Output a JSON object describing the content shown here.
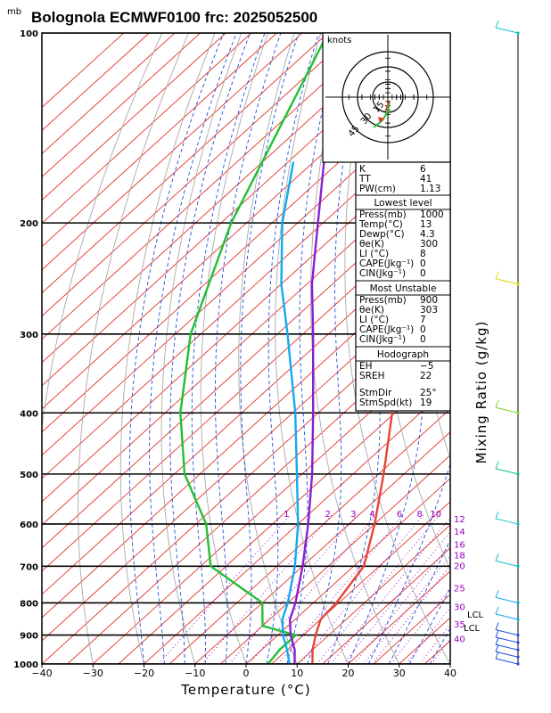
{
  "title": "Bolognola ECMWF0100  frc: 2025052500",
  "pressure_unit": "mb",
  "pressure_ticks": [
    "100",
    "200",
    "300",
    "400",
    "500",
    "600",
    "700",
    "800",
    "900",
    "1000"
  ],
  "temperature_ticks": [
    "−40",
    "−30",
    "−20",
    "−10",
    "0",
    "10",
    "20",
    "30",
    "40"
  ],
  "xlabel": "Temperature  (°C)",
  "ylabel": "Mixing  Ratio  (g/kg)",
  "mixing_ratio_labels": [
    "1",
    "2",
    "3",
    "4",
    "6",
    "8",
    "10",
    "12",
    "14",
    "16",
    "18",
    "20",
    "25",
    "30",
    "35",
    "40"
  ],
  "lcl_label": "LCL",
  "hodograph": {
    "unit": "knots",
    "ring_labels": [
      "15",
      "30",
      "45"
    ]
  },
  "indices": {
    "top": [
      {
        "label": "K",
        "value": "6"
      },
      {
        "label": "TT",
        "value": "41"
      },
      {
        "label": "PW(cm)",
        "value": "1.13"
      }
    ],
    "lowest_title": "Lowest level",
    "lowest": [
      {
        "label": "Press(mb)",
        "value": "1000"
      },
      {
        "label": "Temp(°C)",
        "value": "13"
      },
      {
        "label": "Dewp(°C)",
        "value": "4.3"
      },
      {
        "label": "θe(K)",
        "value": "300"
      },
      {
        "label": "LI (°C)",
        "value": "8"
      },
      {
        "label": "CAPE(Jkg⁻¹)",
        "value": "0"
      },
      {
        "label": "CIN(Jkg⁻¹)",
        "value": "0"
      }
    ],
    "unstable_title": "Most Unstable",
    "unstable": [
      {
        "label": "Press(mb)",
        "value": "900"
      },
      {
        "label": "θe(K)",
        "value": "303"
      },
      {
        "label": "LI (°C)",
        "value": "7"
      },
      {
        "label": "CAPE(Jkg⁻¹)",
        "value": "0"
      },
      {
        "label": "CIN(Jkg⁻¹)",
        "value": "0"
      }
    ],
    "hodo_title": "Hodograph",
    "hodo": [
      {
        "label": "EH",
        "value": "−5"
      },
      {
        "label": "SREH",
        "value": "22"
      },
      {
        "label": "StmDir",
        "value": "25°"
      },
      {
        "label": "StmSpd(kt)",
        "value": "19"
      }
    ]
  },
  "colors": {
    "temperature": "#e8443a",
    "dewpoint": "#22c033",
    "parcel": "#8a1fd0",
    "wetbulb": "#13a9f0",
    "isotherm_red": "#e4342a",
    "dry_adiabat_gray": "#a8a8a8",
    "moist_adiabat_blue": "#1f4fe0",
    "mixing_ratio": "#9b00c8"
  },
  "chart_data": {
    "type": "line",
    "title": "Bolognola ECMWF0100  frc: 2025052500",
    "xlabel": "Temperature  (°C)",
    "ylabel": "mb",
    "xlim": [
      -40,
      40
    ],
    "ylim": [
      1000,
      100
    ],
    "y_scale": "log",
    "skew": true,
    "series": [
      {
        "name": "temperature",
        "color": "#e8443a",
        "points": [
          [
            1000,
            13
          ],
          [
            950,
            10
          ],
          [
            900,
            7.4
          ],
          [
            850,
            5
          ],
          [
            800,
            4.5
          ],
          [
            700,
            2
          ],
          [
            600,
            -5
          ],
          [
            500,
            -14
          ],
          [
            400,
            -25.5
          ],
          [
            300,
            -41
          ],
          [
            250,
            -52
          ],
          [
            200,
            -56
          ],
          [
            150,
            -57
          ],
          [
            100,
            -59
          ]
        ]
      },
      {
        "name": "dewpoint",
        "color": "#22c033",
        "points": [
          [
            1000,
            4.3
          ],
          [
            950,
            3.5
          ],
          [
            900,
            3.5
          ],
          [
            870,
            -5
          ],
          [
            800,
            -10
          ],
          [
            700,
            -28
          ],
          [
            600,
            -38
          ],
          [
            500,
            -53
          ],
          [
            400,
            -67
          ],
          [
            300,
            -82
          ],
          [
            200,
            -98
          ],
          [
            100,
            -120
          ]
        ]
      },
      {
        "name": "parcel",
        "color": "#8a1fd0",
        "points": [
          [
            1000,
            9.5
          ],
          [
            950,
            6.5
          ],
          [
            900,
            2.5
          ],
          [
            850,
            -1
          ],
          [
            800,
            -3.5
          ],
          [
            700,
            -10
          ],
          [
            600,
            -18
          ],
          [
            500,
            -28
          ],
          [
            400,
            -41
          ],
          [
            300,
            -58
          ],
          [
            250,
            -69
          ],
          [
            200,
            -81
          ],
          [
            160,
            -93
          ]
        ]
      },
      {
        "name": "wet-bulb",
        "color": "#13a9f0",
        "points": [
          [
            1000,
            8.5
          ],
          [
            950,
            5
          ],
          [
            900,
            1
          ],
          [
            850,
            -2.5
          ],
          [
            800,
            -5
          ],
          [
            700,
            -11.5
          ],
          [
            600,
            -20
          ],
          [
            500,
            -31
          ],
          [
            400,
            -44.5
          ],
          [
            300,
            -63
          ],
          [
            250,
            -75
          ],
          [
            200,
            -88
          ],
          [
            160,
            -99
          ]
        ]
      }
    ],
    "wind_barbs": [
      {
        "pressure": 1000,
        "color": "#1f4fe0"
      },
      {
        "pressure": 975,
        "color": "#1f4fe0"
      },
      {
        "pressure": 950,
        "color": "#1f4fe0"
      },
      {
        "pressure": 925,
        "color": "#1f4fe0"
      },
      {
        "pressure": 900,
        "color": "#1f4fe0"
      },
      {
        "pressure": 850,
        "color": "#13a9f0"
      },
      {
        "pressure": 800,
        "color": "#13a9f0"
      },
      {
        "pressure": 700,
        "color": "#10c0c0"
      },
      {
        "pressure": 600,
        "color": "#10c0c0"
      },
      {
        "pressure": 500,
        "color": "#10c080"
      },
      {
        "pressure": 400,
        "color": "#80d020"
      },
      {
        "pressure": 250,
        "color": "#d8d800"
      },
      {
        "pressure": 100,
        "color": "#10c0c0"
      }
    ]
  }
}
